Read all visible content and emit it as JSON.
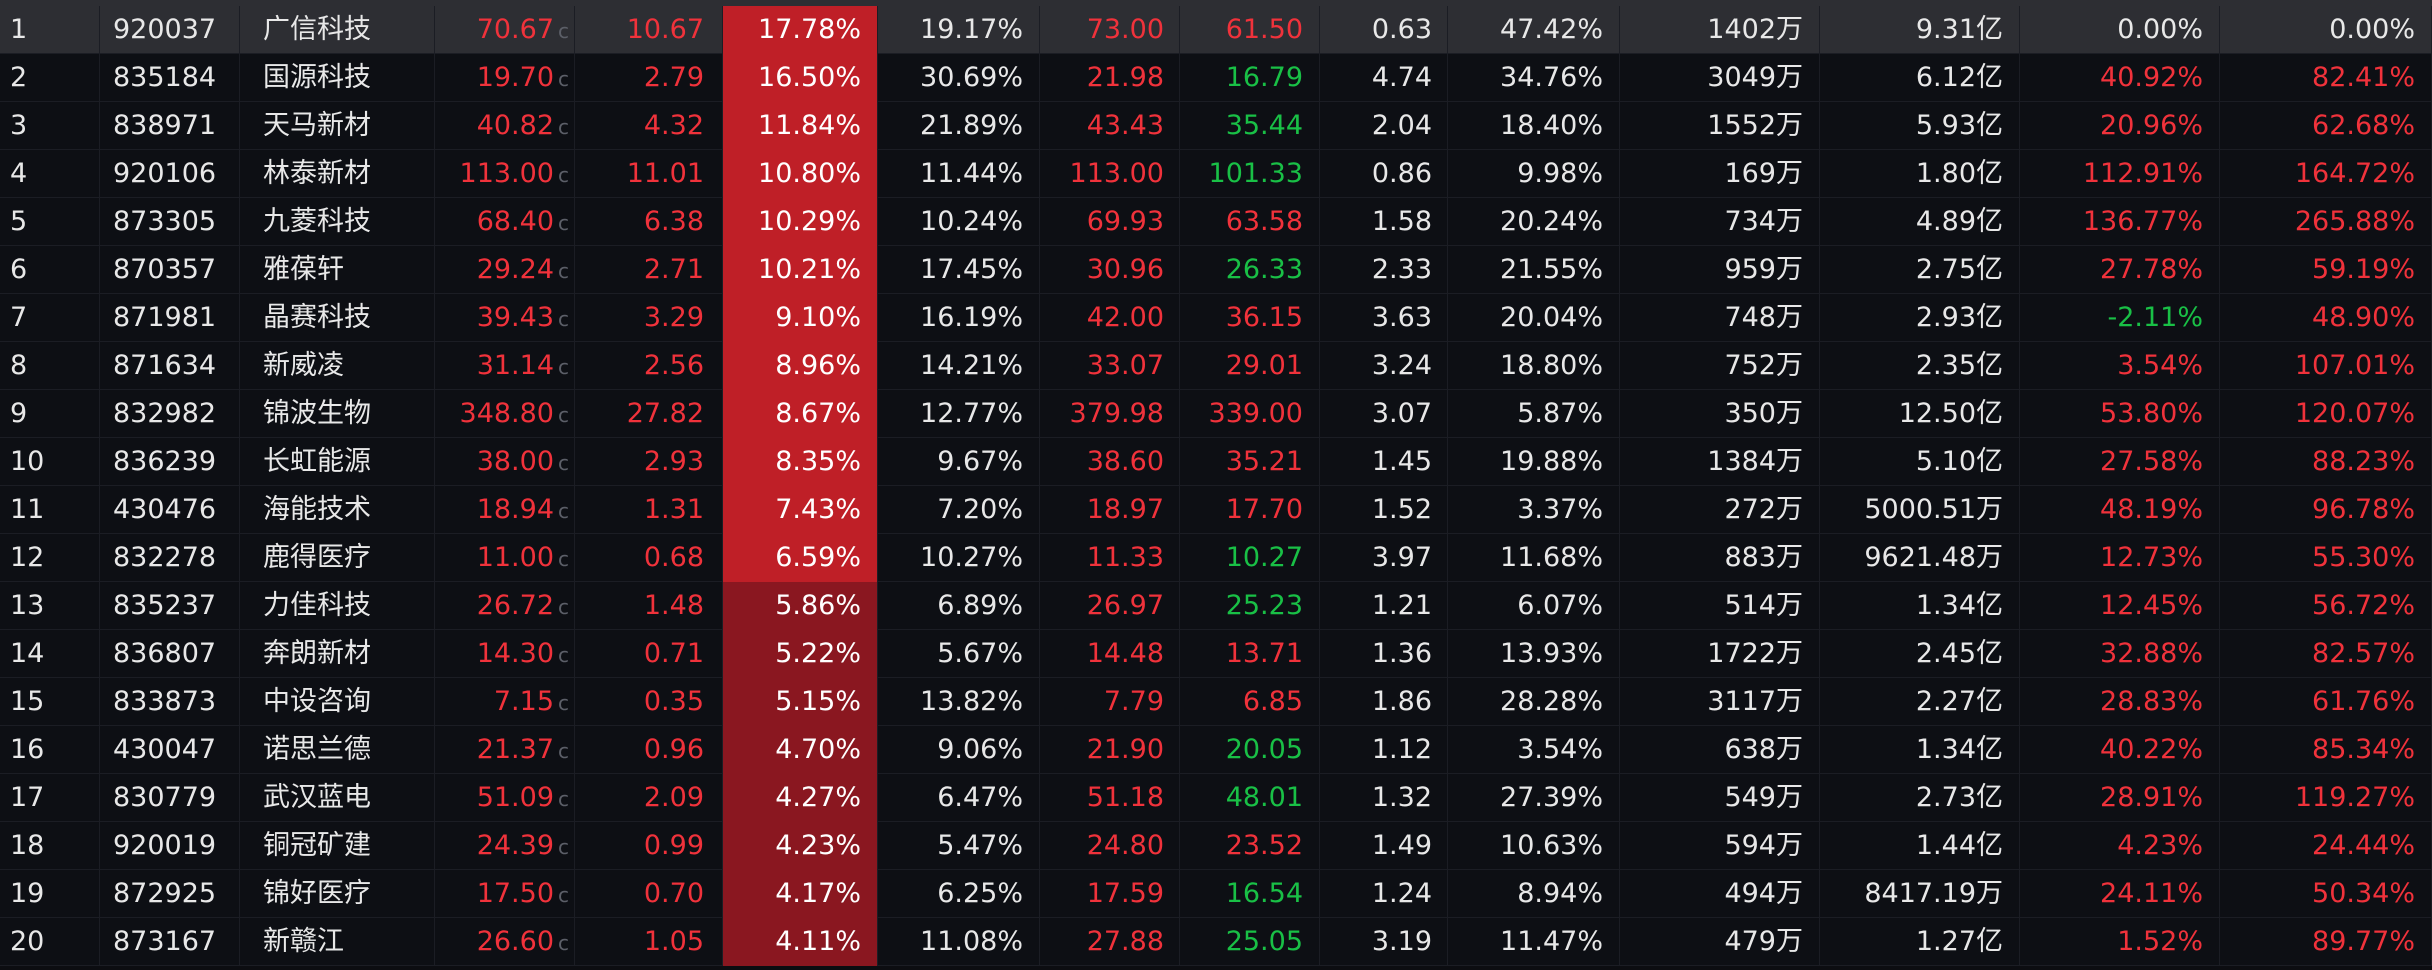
{
  "colors": {
    "up": "#f0323b",
    "down": "#19c046",
    "neutral": "#e8e8e8",
    "heat_strong": "#bf1f27",
    "heat_weak": "#8a1720"
  },
  "rows": [
    {
      "rank": "1",
      "code": "920037",
      "name": "广信科技",
      "price": "70.67",
      "c": "c",
      "change": "10.67",
      "pct": "17.78%",
      "turnover": "19.17%",
      "high": "73.00",
      "low": "61.50",
      "ratio": "0.63",
      "amp": "47.42%",
      "vol": "1402万",
      "amount": "9.31亿",
      "ret1": "0.00%",
      "ret2": "0.00%",
      "pct_value": 17.78,
      "price_dir": "up",
      "change_dir": "up",
      "high_dir": "up",
      "low_dir": "up",
      "ret1_dir": "flat",
      "ret2_dir": "flat"
    },
    {
      "rank": "2",
      "code": "835184",
      "name": "国源科技",
      "price": "19.70",
      "c": "c",
      "change": "2.79",
      "pct": "16.50%",
      "turnover": "30.69%",
      "high": "21.98",
      "low": "16.79",
      "ratio": "4.74",
      "amp": "34.76%",
      "vol": "3049万",
      "amount": "6.12亿",
      "ret1": "40.92%",
      "ret2": "82.41%",
      "pct_value": 16.5,
      "price_dir": "up",
      "change_dir": "up",
      "high_dir": "up",
      "low_dir": "down",
      "ret1_dir": "up",
      "ret2_dir": "up"
    },
    {
      "rank": "3",
      "code": "838971",
      "name": "天马新材",
      "price": "40.82",
      "c": "c",
      "change": "4.32",
      "pct": "11.84%",
      "turnover": "21.89%",
      "high": "43.43",
      "low": "35.44",
      "ratio": "2.04",
      "amp": "18.40%",
      "vol": "1552万",
      "amount": "5.93亿",
      "ret1": "20.96%",
      "ret2": "62.68%",
      "pct_value": 11.84,
      "price_dir": "up",
      "change_dir": "up",
      "high_dir": "up",
      "low_dir": "down",
      "ret1_dir": "up",
      "ret2_dir": "up"
    },
    {
      "rank": "4",
      "code": "920106",
      "name": "林泰新材",
      "price": "113.00",
      "c": "c",
      "change": "11.01",
      "pct": "10.80%",
      "turnover": "11.44%",
      "high": "113.00",
      "low": "101.33",
      "ratio": "0.86",
      "amp": "9.98%",
      "vol": "169万",
      "amount": "1.80亿",
      "ret1": "112.91%",
      "ret2": "164.72%",
      "pct_value": 10.8,
      "price_dir": "up",
      "change_dir": "up",
      "high_dir": "up",
      "low_dir": "down",
      "ret1_dir": "up",
      "ret2_dir": "up"
    },
    {
      "rank": "5",
      "code": "873305",
      "name": "九菱科技",
      "price": "68.40",
      "c": "c",
      "change": "6.38",
      "pct": "10.29%",
      "turnover": "10.24%",
      "high": "69.93",
      "low": "63.58",
      "ratio": "1.58",
      "amp": "20.24%",
      "vol": "734万",
      "amount": "4.89亿",
      "ret1": "136.77%",
      "ret2": "265.88%",
      "pct_value": 10.29,
      "price_dir": "up",
      "change_dir": "up",
      "high_dir": "up",
      "low_dir": "up",
      "ret1_dir": "up",
      "ret2_dir": "up"
    },
    {
      "rank": "6",
      "code": "870357",
      "name": "雅葆轩",
      "price": "29.24",
      "c": "c",
      "change": "2.71",
      "pct": "10.21%",
      "turnover": "17.45%",
      "high": "30.96",
      "low": "26.33",
      "ratio": "2.33",
      "amp": "21.55%",
      "vol": "959万",
      "amount": "2.75亿",
      "ret1": "27.78%",
      "ret2": "59.19%",
      "pct_value": 10.21,
      "price_dir": "up",
      "change_dir": "up",
      "high_dir": "up",
      "low_dir": "down",
      "ret1_dir": "up",
      "ret2_dir": "up"
    },
    {
      "rank": "7",
      "code": "871981",
      "name": "晶赛科技",
      "price": "39.43",
      "c": "c",
      "change": "3.29",
      "pct": "9.10%",
      "turnover": "16.19%",
      "high": "42.00",
      "low": "36.15",
      "ratio": "3.63",
      "amp": "20.04%",
      "vol": "748万",
      "amount": "2.93亿",
      "ret1": "-2.11%",
      "ret2": "48.90%",
      "pct_value": 9.1,
      "price_dir": "up",
      "change_dir": "up",
      "high_dir": "up",
      "low_dir": "up",
      "ret1_dir": "down",
      "ret2_dir": "up"
    },
    {
      "rank": "8",
      "code": "871634",
      "name": "新威凌",
      "price": "31.14",
      "c": "c",
      "change": "2.56",
      "pct": "8.96%",
      "turnover": "14.21%",
      "high": "33.07",
      "low": "29.01",
      "ratio": "3.24",
      "amp": "18.80%",
      "vol": "752万",
      "amount": "2.35亿",
      "ret1": "3.54%",
      "ret2": "107.01%",
      "pct_value": 8.96,
      "price_dir": "up",
      "change_dir": "up",
      "high_dir": "up",
      "low_dir": "up",
      "ret1_dir": "up",
      "ret2_dir": "up"
    },
    {
      "rank": "9",
      "code": "832982",
      "name": "锦波生物",
      "price": "348.80",
      "c": "c",
      "change": "27.82",
      "pct": "8.67%",
      "turnover": "12.77%",
      "high": "379.98",
      "low": "339.00",
      "ratio": "3.07",
      "amp": "5.87%",
      "vol": "350万",
      "amount": "12.50亿",
      "ret1": "53.80%",
      "ret2": "120.07%",
      "pct_value": 8.67,
      "price_dir": "up",
      "change_dir": "up",
      "high_dir": "up",
      "low_dir": "up",
      "ret1_dir": "up",
      "ret2_dir": "up"
    },
    {
      "rank": "10",
      "code": "836239",
      "name": "长虹能源",
      "price": "38.00",
      "c": "c",
      "change": "2.93",
      "pct": "8.35%",
      "turnover": "9.67%",
      "high": "38.60",
      "low": "35.21",
      "ratio": "1.45",
      "amp": "19.88%",
      "vol": "1384万",
      "amount": "5.10亿",
      "ret1": "27.58%",
      "ret2": "88.23%",
      "pct_value": 8.35,
      "price_dir": "up",
      "change_dir": "up",
      "high_dir": "up",
      "low_dir": "up",
      "ret1_dir": "up",
      "ret2_dir": "up"
    },
    {
      "rank": "11",
      "code": "430476",
      "name": "海能技术",
      "price": "18.94",
      "c": "c",
      "change": "1.31",
      "pct": "7.43%",
      "turnover": "7.20%",
      "high": "18.97",
      "low": "17.70",
      "ratio": "1.52",
      "amp": "3.37%",
      "vol": "272万",
      "amount": "5000.51万",
      "ret1": "48.19%",
      "ret2": "96.78%",
      "pct_value": 7.43,
      "price_dir": "up",
      "change_dir": "up",
      "high_dir": "up",
      "low_dir": "up",
      "ret1_dir": "up",
      "ret2_dir": "up"
    },
    {
      "rank": "12",
      "code": "832278",
      "name": "鹿得医疗",
      "price": "11.00",
      "c": "c",
      "change": "0.68",
      "pct": "6.59%",
      "turnover": "10.27%",
      "high": "11.33",
      "low": "10.27",
      "ratio": "3.97",
      "amp": "11.68%",
      "vol": "883万",
      "amount": "9621.48万",
      "ret1": "12.73%",
      "ret2": "55.30%",
      "pct_value": 6.59,
      "price_dir": "up",
      "change_dir": "up",
      "high_dir": "up",
      "low_dir": "down",
      "ret1_dir": "up",
      "ret2_dir": "up"
    },
    {
      "rank": "13",
      "code": "835237",
      "name": "力佳科技",
      "price": "26.72",
      "c": "c",
      "change": "1.48",
      "pct": "5.86%",
      "turnover": "6.89%",
      "high": "26.97",
      "low": "25.23",
      "ratio": "1.21",
      "amp": "6.07%",
      "vol": "514万",
      "amount": "1.34亿",
      "ret1": "12.45%",
      "ret2": "56.72%",
      "pct_value": 5.86,
      "price_dir": "up",
      "change_dir": "up",
      "high_dir": "up",
      "low_dir": "down",
      "ret1_dir": "up",
      "ret2_dir": "up"
    },
    {
      "rank": "14",
      "code": "836807",
      "name": "奔朗新材",
      "price": "14.30",
      "c": "c",
      "change": "0.71",
      "pct": "5.22%",
      "turnover": "5.67%",
      "high": "14.48",
      "low": "13.71",
      "ratio": "1.36",
      "amp": "13.93%",
      "vol": "1722万",
      "amount": "2.45亿",
      "ret1": "32.88%",
      "ret2": "82.57%",
      "pct_value": 5.22,
      "price_dir": "up",
      "change_dir": "up",
      "high_dir": "up",
      "low_dir": "up",
      "ret1_dir": "up",
      "ret2_dir": "up"
    },
    {
      "rank": "15",
      "code": "833873",
      "name": "中设咨询",
      "price": "7.15",
      "c": "c",
      "change": "0.35",
      "pct": "5.15%",
      "turnover": "13.82%",
      "high": "7.79",
      "low": "6.85",
      "ratio": "1.86",
      "amp": "28.28%",
      "vol": "3117万",
      "amount": "2.27亿",
      "ret1": "28.83%",
      "ret2": "61.76%",
      "pct_value": 5.15,
      "price_dir": "up",
      "change_dir": "up",
      "high_dir": "up",
      "low_dir": "up",
      "ret1_dir": "up",
      "ret2_dir": "up"
    },
    {
      "rank": "16",
      "code": "430047",
      "name": "诺思兰德",
      "price": "21.37",
      "c": "c",
      "change": "0.96",
      "pct": "4.70%",
      "turnover": "9.06%",
      "high": "21.90",
      "low": "20.05",
      "ratio": "1.12",
      "amp": "3.54%",
      "vol": "638万",
      "amount": "1.34亿",
      "ret1": "40.22%",
      "ret2": "85.34%",
      "pct_value": 4.7,
      "price_dir": "up",
      "change_dir": "up",
      "high_dir": "up",
      "low_dir": "down",
      "ret1_dir": "up",
      "ret2_dir": "up"
    },
    {
      "rank": "17",
      "code": "830779",
      "name": "武汉蓝电",
      "price": "51.09",
      "c": "c",
      "change": "2.09",
      "pct": "4.27%",
      "turnover": "6.47%",
      "high": "51.18",
      "low": "48.01",
      "ratio": "1.32",
      "amp": "27.39%",
      "vol": "549万",
      "amount": "2.73亿",
      "ret1": "28.91%",
      "ret2": "119.27%",
      "pct_value": 4.27,
      "price_dir": "up",
      "change_dir": "up",
      "high_dir": "up",
      "low_dir": "down",
      "ret1_dir": "up",
      "ret2_dir": "up"
    },
    {
      "rank": "18",
      "code": "920019",
      "name": "铜冠矿建",
      "price": "24.39",
      "c": "c",
      "change": "0.99",
      "pct": "4.23%",
      "turnover": "5.47%",
      "high": "24.80",
      "low": "23.52",
      "ratio": "1.49",
      "amp": "10.63%",
      "vol": "594万",
      "amount": "1.44亿",
      "ret1": "4.23%",
      "ret2": "24.44%",
      "pct_value": 4.23,
      "price_dir": "up",
      "change_dir": "up",
      "high_dir": "up",
      "low_dir": "up",
      "ret1_dir": "up",
      "ret2_dir": "up"
    },
    {
      "rank": "19",
      "code": "872925",
      "name": "锦好医疗",
      "price": "17.50",
      "c": "c",
      "change": "0.70",
      "pct": "4.17%",
      "turnover": "6.25%",
      "high": "17.59",
      "low": "16.54",
      "ratio": "1.24",
      "amp": "8.94%",
      "vol": "494万",
      "amount": "8417.19万",
      "ret1": "24.11%",
      "ret2": "50.34%",
      "pct_value": 4.17,
      "price_dir": "up",
      "change_dir": "up",
      "high_dir": "up",
      "low_dir": "down",
      "ret1_dir": "up",
      "ret2_dir": "up"
    },
    {
      "rank": "20",
      "code": "873167",
      "name": "新赣江",
      "price": "26.60",
      "c": "c",
      "change": "1.05",
      "pct": "4.11%",
      "turnover": "11.08%",
      "high": "27.88",
      "low": "25.05",
      "ratio": "3.19",
      "amp": "11.47%",
      "vol": "479万",
      "amount": "1.27亿",
      "ret1": "1.52%",
      "ret2": "89.77%",
      "pct_value": 4.11,
      "price_dir": "up",
      "change_dir": "up",
      "high_dir": "up",
      "low_dir": "down",
      "ret1_dir": "up",
      "ret2_dir": "up"
    }
  ]
}
